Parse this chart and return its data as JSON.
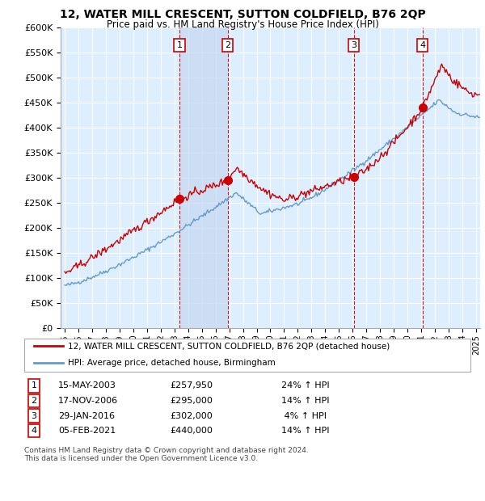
{
  "title1": "12, WATER MILL CRESCENT, SUTTON COLDFIELD, B76 2QP",
  "title2": "Price paid vs. HM Land Registry's House Price Index (HPI)",
  "ylabel_ticks": [
    "£0",
    "£50K",
    "£100K",
    "£150K",
    "£200K",
    "£250K",
    "£300K",
    "£350K",
    "£400K",
    "£450K",
    "£500K",
    "£550K",
    "£600K"
  ],
  "ytick_values": [
    0,
    50000,
    100000,
    150000,
    200000,
    250000,
    300000,
    350000,
    400000,
    450000,
    500000,
    550000,
    600000
  ],
  "xlim_start": 1994.7,
  "xlim_end": 2025.3,
  "ylim_min": 0,
  "ylim_max": 600000,
  "sale_dates": [
    2003.37,
    2006.88,
    2016.08,
    2021.09
  ],
  "sale_prices": [
    257950,
    295000,
    302000,
    440000
  ],
  "sale_labels": [
    "1",
    "2",
    "3",
    "4"
  ],
  "legend_line1": "12, WATER MILL CRESCENT, SUTTON COLDFIELD, B76 2QP (detached house)",
  "legend_line2": "HPI: Average price, detached house, Birmingham",
  "table_rows": [
    [
      "1",
      "15-MAY-2003",
      "£257,950",
      "24% ↑ HPI"
    ],
    [
      "2",
      "17-NOV-2006",
      "£295,000",
      "14% ↑ HPI"
    ],
    [
      "3",
      "29-JAN-2016",
      "£302,000",
      " 4% ↑ HPI"
    ],
    [
      "4",
      "05-FEB-2021",
      "£440,000",
      "14% ↑ HPI"
    ]
  ],
  "footer": "Contains HM Land Registry data © Crown copyright and database right 2024.\nThis data is licensed under the Open Government Licence v3.0.",
  "red_color": "#cc0000",
  "blue_color": "#6699cc",
  "sale_marker_color": "#cc0000",
  "bg_color": "#ddeeff",
  "shade_color": "#c5d8f0",
  "grid_color": "#ffffff",
  "box_color": "#cc0000",
  "legend_border": "#aaaaaa"
}
